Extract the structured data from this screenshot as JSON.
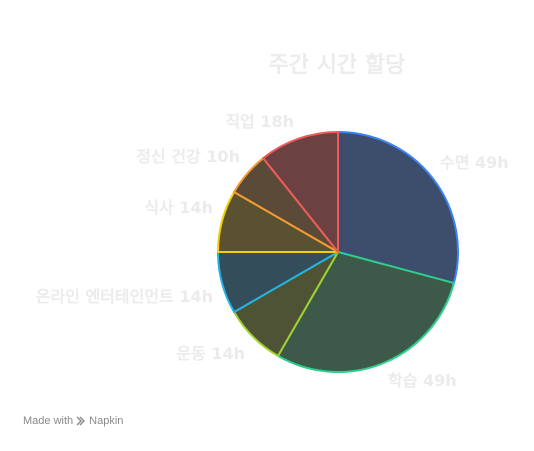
{
  "chart_data": {
    "type": "pie",
    "title": "주간 시간 할당",
    "slices": [
      {
        "label": "수면 49h",
        "value": 49,
        "fill": "#3c4e6b",
        "stroke": "#3b82f6"
      },
      {
        "label": "학습 49h",
        "value": 49,
        "fill": "#3c5949",
        "stroke": "#2ccf8c"
      },
      {
        "label": "운동 14h",
        "value": 14,
        "fill": "#4f5335",
        "stroke": "#a3d12e"
      },
      {
        "label": "온라인 엔터테인먼트 14h",
        "value": 14,
        "fill": "#344d5b",
        "stroke": "#22b3e6"
      },
      {
        "label": "식사 14h",
        "value": 14,
        "fill": "#5a5130",
        "stroke": "#f5d000"
      },
      {
        "label": "정신 건강 10h",
        "value": 10,
        "fill": "#5b4a38",
        "stroke": "#f59a35"
      },
      {
        "label": "직업 18h",
        "value": 18,
        "fill": "#6b4141",
        "stroke": "#f05a5a"
      }
    ]
  },
  "footer": {
    "made_with": "Made with",
    "brand": "Napkin",
    "brand_icon": "napkin-logo-icon"
  }
}
